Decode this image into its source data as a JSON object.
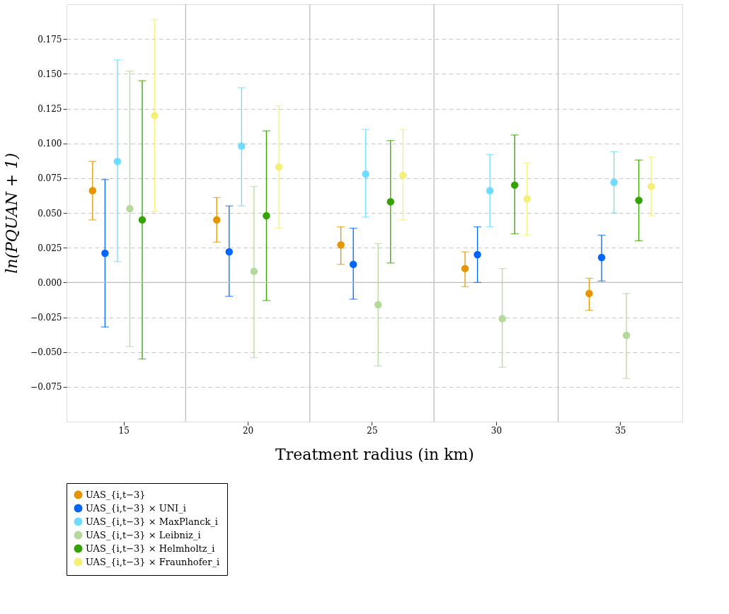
{
  "chart_data": {
    "type": "scatter",
    "xlabel": "Treatment radius (in km)",
    "ylabel": "ln(PQUAN + 1)",
    "xlim": [
      12.7,
      37.5
    ],
    "xticks": [
      15,
      20,
      25,
      30,
      35
    ],
    "ylim": [
      -0.1,
      0.2
    ],
    "yticks": [
      {
        "value": -0.075,
        "label": "−0.075"
      },
      {
        "value": -0.05,
        "label": "−0.050"
      },
      {
        "value": -0.025,
        "label": "−0.025"
      },
      {
        "value": 0,
        "label": "0.000"
      },
      {
        "value": 0.025,
        "label": "0.025"
      },
      {
        "value": 0.05,
        "label": "0.050"
      },
      {
        "value": 0.075,
        "label": "0.075"
      },
      {
        "value": 0.1,
        "label": "0.100"
      },
      {
        "value": 0.125,
        "label": "0.125"
      },
      {
        "value": 0.15,
        "label": "0.150"
      },
      {
        "value": 0.175,
        "label": "0.175"
      }
    ],
    "grid": "y",
    "legend": "bottom",
    "marker": "circle",
    "ref_lines": [
      {
        "axis": "y",
        "value": 0,
        "color": "#bdbdbd"
      },
      {
        "axis": "x",
        "value": 17.5,
        "color": "#bdbdbd"
      },
      {
        "axis": "x",
        "value": 22.5,
        "color": "#bdbdbd"
      },
      {
        "axis": "x",
        "value": 27.5,
        "color": "#bdbdbd"
      },
      {
        "axis": "x",
        "value": 32.5,
        "color": "#bdbdbd"
      }
    ],
    "series": [
      {
        "name": "UAS_{i,t−3}",
        "color": "#e69500",
        "x": [
          13.75,
          18.75,
          23.75,
          28.75,
          33.75
        ],
        "values": [
          0.066,
          0.045,
          0.027,
          0.01,
          -0.008
        ],
        "errors": [
          [
            0.045,
            0.087
          ],
          [
            0.029,
            0.061
          ],
          [
            0.013,
            0.04
          ],
          [
            -0.003,
            0.022
          ],
          [
            -0.02,
            0.003
          ]
        ]
      },
      {
        "name": "UAS_{i,t−3} × UNI_i",
        "color": "#0066ff",
        "x": [
          14.25,
          19.25,
          24.25,
          29.25,
          34.25
        ],
        "values": [
          0.021,
          0.022,
          0.013,
          0.02,
          0.018
        ],
        "errors": [
          [
            -0.032,
            0.074
          ],
          [
            -0.01,
            0.055
          ],
          [
            -0.012,
            0.039
          ],
          [
            0.0,
            0.04
          ],
          [
            0.001,
            0.034
          ]
        ]
      },
      {
        "name": "UAS_{i,t−3} × MaxPlanck_i",
        "color": "#6fdcff",
        "x": [
          14.75,
          19.75,
          24.75,
          29.75,
          34.75
        ],
        "values": [
          0.087,
          0.098,
          0.078,
          0.066,
          0.072
        ],
        "errors": [
          [
            0.015,
            0.16
          ],
          [
            0.055,
            0.14
          ],
          [
            0.047,
            0.11
          ],
          [
            0.04,
            0.092
          ],
          [
            0.05,
            0.094
          ]
        ]
      },
      {
        "name": "UAS_{i,t−3} × Leibniz_i",
        "color": "#b5d99c",
        "x": [
          15.25,
          20.25,
          25.25,
          30.25,
          35.25
        ],
        "values": [
          0.053,
          0.008,
          -0.016,
          -0.026,
          -0.038
        ],
        "errors": [
          [
            -0.046,
            0.152
          ],
          [
            -0.054,
            0.069
          ],
          [
            -0.06,
            0.028
          ],
          [
            -0.061,
            0.01
          ],
          [
            -0.069,
            -0.008
          ]
        ]
      },
      {
        "name": "UAS_{i,t−3} × Helmholtz_i",
        "color": "#33a300",
        "x": [
          15.75,
          20.75,
          25.75,
          30.75,
          35.75
        ],
        "values": [
          0.045,
          0.048,
          0.058,
          0.07,
          0.059
        ],
        "errors": [
          [
            -0.055,
            0.145
          ],
          [
            -0.013,
            0.109
          ],
          [
            0.014,
            0.102
          ],
          [
            0.035,
            0.106
          ],
          [
            0.03,
            0.088
          ]
        ]
      },
      {
        "name": "UAS_{i,t−3} × Fraunhofer_i",
        "color": "#f5ef77",
        "x": [
          16.25,
          21.25,
          26.25,
          31.25,
          36.25
        ],
        "values": [
          0.12,
          0.083,
          0.077,
          0.06,
          0.069
        ],
        "errors": [
          [
            0.051,
            0.189
          ],
          [
            0.039,
            0.127
          ],
          [
            0.045,
            0.11
          ],
          [
            0.034,
            0.086
          ],
          [
            0.048,
            0.09
          ]
        ]
      }
    ]
  }
}
